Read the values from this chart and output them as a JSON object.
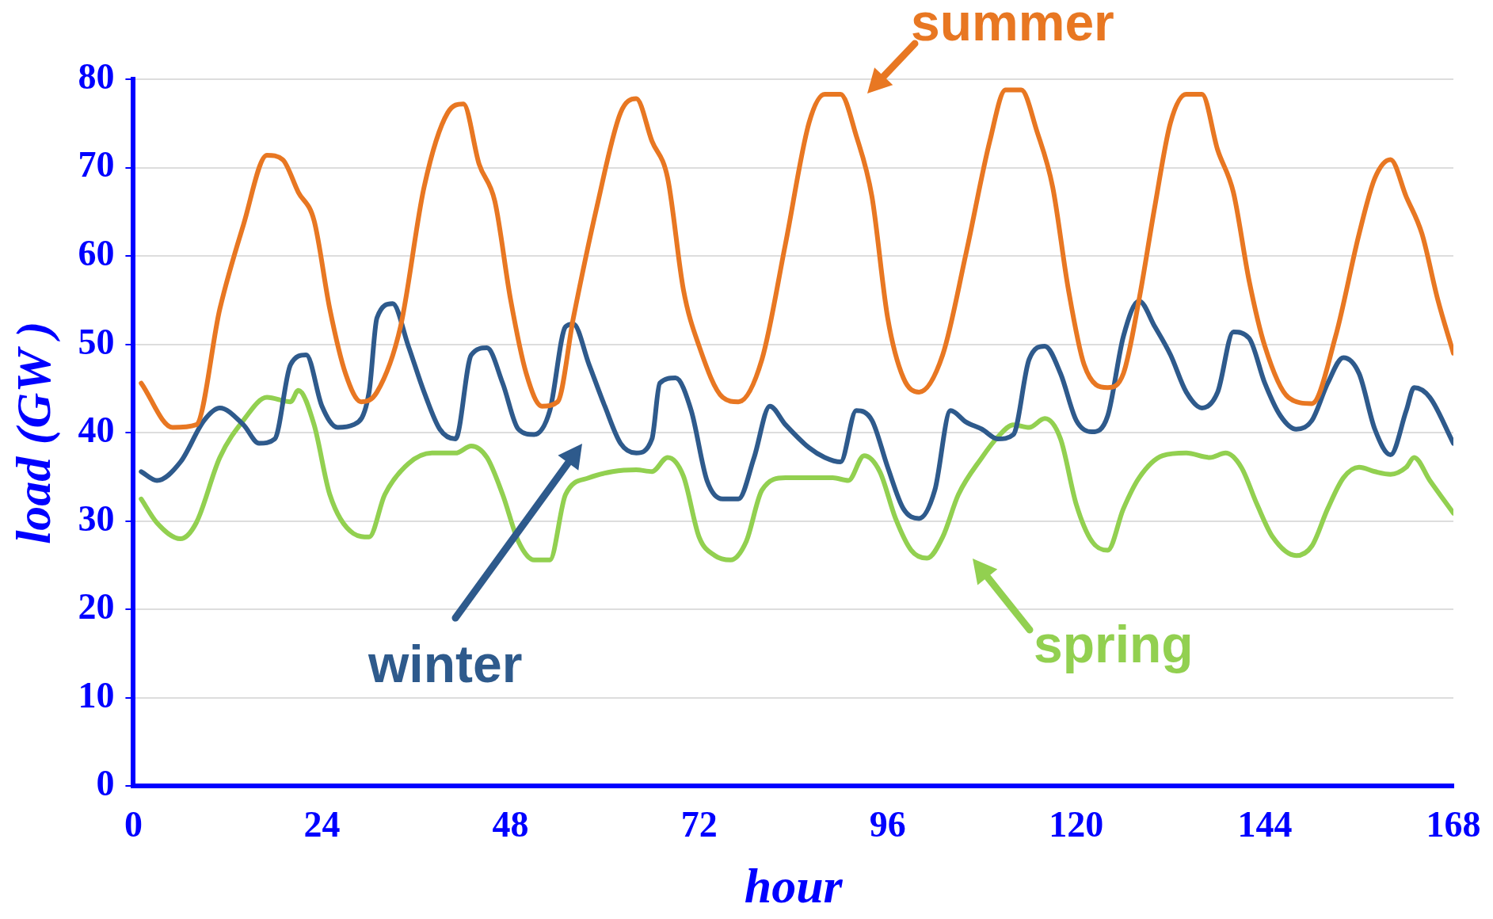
{
  "chart_data": {
    "type": "line",
    "xlabel": "hour",
    "ylabel": "load (GW )",
    "xlim": [
      0,
      168
    ],
    "xticks": [
      0,
      24,
      48,
      72,
      96,
      120,
      144,
      168
    ],
    "ylim": [
      0,
      80
    ],
    "yticks": [
      0,
      10,
      20,
      30,
      40,
      50,
      60,
      70,
      80
    ],
    "grid": "y",
    "marker": "none",
    "line_style": "solid",
    "series": [
      {
        "name": "summer",
        "color": "#e87722",
        "x": [
          1,
          5,
          8,
          11,
          14,
          17,
          19,
          21,
          23,
          25,
          27,
          29,
          31,
          34,
          37,
          40,
          42,
          44,
          46,
          48,
          50,
          52,
          54,
          56,
          59,
          62,
          64,
          66,
          68,
          70,
          72,
          75,
          77,
          80,
          83,
          86,
          88,
          90,
          92,
          94,
          96,
          98,
          100,
          103,
          106,
          109,
          111,
          113,
          115,
          117,
          119,
          121,
          124,
          126,
          128,
          130,
          132,
          134,
          136,
          138,
          140,
          142,
          144,
          147,
          150,
          153,
          156,
          158,
          160,
          162,
          164,
          166,
          168
        ],
        "values": [
          45.6,
          40.6,
          40.9,
          54,
          63.5,
          71.4,
          70.9,
          67.2,
          64,
          54,
          46.7,
          43.5,
          44.6,
          52,
          67.8,
          76.2,
          77.2,
          70.4,
          66.2,
          55.1,
          46.7,
          43,
          43.5,
          53,
          65.6,
          76.2,
          77.8,
          73,
          68.8,
          56.2,
          49.8,
          44,
          43.5,
          48.3,
          61.4,
          75.1,
          78.3,
          78.3,
          73.6,
          66.7,
          53,
          46.2,
          44.6,
          48.8,
          60.4,
          73,
          78.8,
          78.8,
          74.1,
          67.8,
          56.2,
          47.7,
          45.1,
          46.7,
          55.1,
          65.6,
          75.1,
          78.3,
          78.3,
          72,
          67.2,
          57.2,
          49.8,
          44,
          43.3,
          50.9,
          62.5,
          68.8,
          70.9,
          66.7,
          62.5,
          55.1,
          49
        ]
      },
      {
        "name": "winter",
        "color": "#2e5a8c",
        "x": [
          1,
          3,
          6,
          9,
          11,
          14,
          16,
          18,
          20,
          22,
          24,
          26,
          28,
          30,
          31,
          33,
          35,
          37,
          39,
          41,
          43,
          45,
          47,
          49,
          51,
          53,
          55,
          56,
          58,
          60,
          62,
          64,
          66,
          67,
          69,
          71,
          73,
          75,
          77,
          79,
          81,
          83,
          86,
          88,
          90,
          92,
          94,
          96,
          98,
          100,
          102,
          104,
          106,
          108,
          110,
          112,
          114,
          116,
          118,
          120,
          122,
          124,
          126,
          128,
          130,
          132,
          134,
          136,
          138,
          140,
          142,
          144,
          146,
          148,
          150,
          152,
          154,
          156,
          158,
          160,
          162,
          163,
          165,
          168
        ],
        "values": [
          35.6,
          34.6,
          36.7,
          41.4,
          42.8,
          40.9,
          38.8,
          39.3,
          47.7,
          48.8,
          43,
          40.6,
          40.9,
          44.6,
          53,
          54.6,
          49.8,
          44.6,
          40.4,
          39.3,
          48.8,
          49.6,
          45.6,
          40.4,
          39.8,
          42.5,
          52,
          52.3,
          47.7,
          43,
          38.8,
          37.7,
          39.3,
          45.6,
          46.2,
          42.5,
          34.6,
          32.5,
          32.5,
          37.2,
          43,
          40.9,
          38.3,
          37.2,
          36.7,
          42.5,
          41.4,
          36.1,
          31.4,
          30.3,
          33.5,
          42.5,
          41.2,
          40.4,
          39.3,
          39.8,
          48.3,
          49.8,
          46.7,
          41.4,
          40.1,
          41.9,
          50.9,
          54.9,
          52,
          48.8,
          44.6,
          42.8,
          44.6,
          51.4,
          50.7,
          45.6,
          41.9,
          40.4,
          41.4,
          45.6,
          48.5,
          46.7,
          40.4,
          37.5,
          42.5,
          45.1,
          44,
          38.8
        ]
      },
      {
        "name": "spring",
        "color": "#92d050",
        "x": [
          1,
          3,
          6,
          8,
          11,
          14,
          17,
          20,
          21,
          23,
          25,
          28,
          30,
          32,
          35,
          38,
          41,
          43,
          45,
          47,
          49,
          51,
          53,
          55,
          58,
          61,
          64,
          66,
          68,
          70,
          72,
          74,
          76,
          78,
          80,
          83,
          86,
          89,
          91,
          93,
          95,
          97,
          99,
          101,
          103,
          105,
          108,
          110,
          112,
          114,
          116,
          118,
          120,
          122,
          124,
          126,
          128,
          131,
          134,
          137,
          139,
          141,
          143,
          145,
          148,
          150,
          152,
          154,
          156,
          158,
          160,
          162,
          163,
          165,
          168
        ],
        "values": [
          32.5,
          29.8,
          28,
          29.8,
          37.2,
          41.4,
          44,
          43.5,
          44.8,
          40.9,
          33,
          28.6,
          28.2,
          33,
          36.5,
          37.7,
          37.7,
          38.5,
          37.2,
          33,
          27.7,
          25.6,
          25.6,
          33,
          34.9,
          35.6,
          35.8,
          35.6,
          37.2,
          35.1,
          28.2,
          26.1,
          25.6,
          27.7,
          33.5,
          34.9,
          34.9,
          34.9,
          34.6,
          37.4,
          35.6,
          30.3,
          26.7,
          25.8,
          28.2,
          33,
          37.2,
          39.5,
          40.9,
          40.6,
          41.6,
          39.3,
          31.9,
          27.7,
          26.7,
          31.4,
          34.9,
          37.4,
          37.7,
          37.2,
          37.7,
          36.1,
          31.9,
          28.2,
          26.1,
          27.2,
          31.4,
          34.9,
          36.1,
          35.6,
          35.3,
          36.1,
          37.2,
          34.6,
          30.9
        ]
      }
    ]
  }
}
